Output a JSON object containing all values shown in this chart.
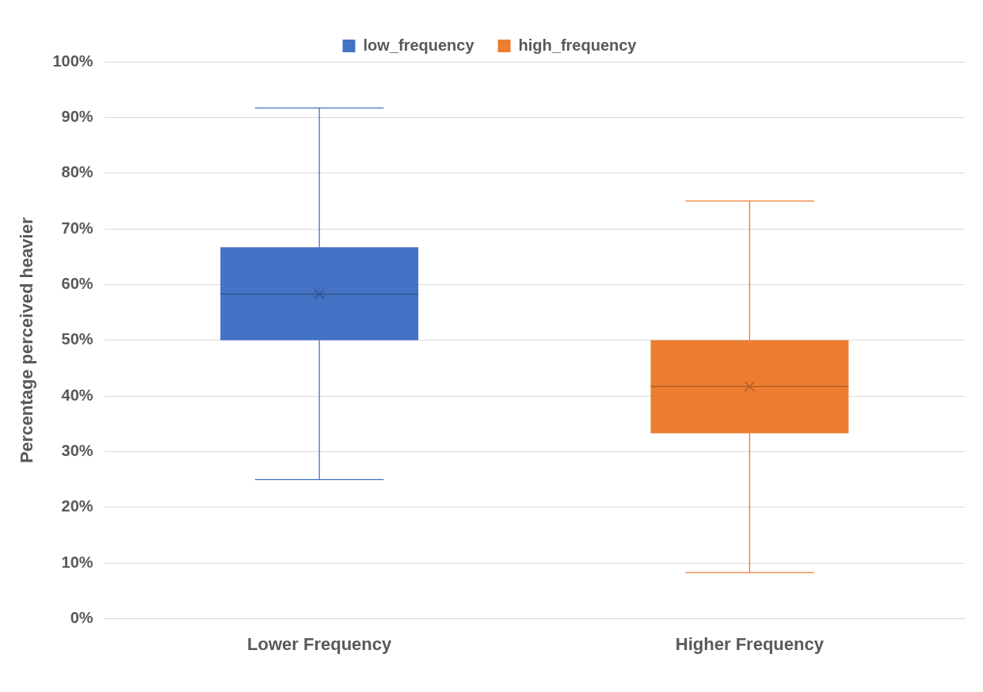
{
  "chart_data": {
    "type": "box",
    "ylabel": "Percentage perceived heavier",
    "categories": [
      "Lower Frequency",
      "Higher Frequency"
    ],
    "series": [
      {
        "name": "low_frequency",
        "color": "#4472c4",
        "boxes": [
          {
            "low": 25,
            "q1": 50,
            "median": 58.3,
            "q3": 66.7,
            "high": 91.7,
            "mean": 58.3
          },
          null
        ]
      },
      {
        "name": "high_frequency",
        "color": "#ed7d31",
        "boxes": [
          null,
          {
            "low": 8.3,
            "q1": 33.3,
            "median": 41.7,
            "q3": 50,
            "high": 75,
            "mean": 41.7
          }
        ]
      }
    ],
    "ylim": [
      0,
      100
    ],
    "yticks": [
      {
        "value": 0,
        "label": "0%"
      },
      {
        "value": 10,
        "label": "10%"
      },
      {
        "value": 20,
        "label": "20%"
      },
      {
        "value": 30,
        "label": "30%"
      },
      {
        "value": 40,
        "label": "40%"
      },
      {
        "value": 50,
        "label": "50%"
      },
      {
        "value": 60,
        "label": "60%"
      },
      {
        "value": 70,
        "label": "70%"
      },
      {
        "value": 80,
        "label": "80%"
      },
      {
        "value": 90,
        "label": "90%"
      },
      {
        "value": 100,
        "label": "100%"
      }
    ],
    "grid": "y",
    "legend": "top"
  }
}
